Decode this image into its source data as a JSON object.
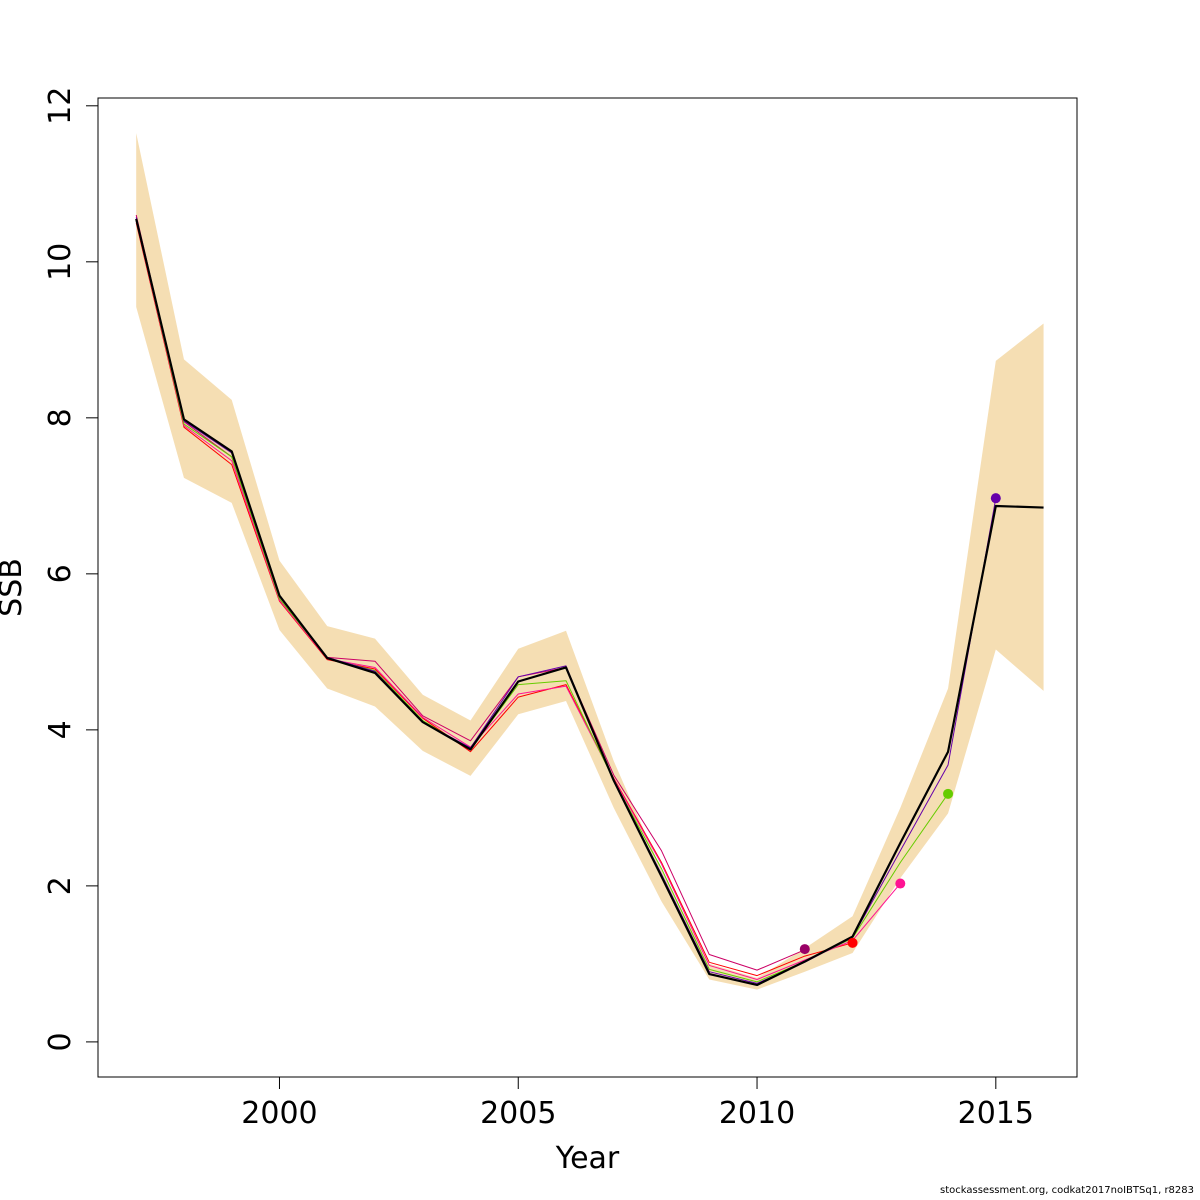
{
  "chart_data": {
    "type": "line",
    "xlabel": "Year",
    "ylabel": "SSB",
    "xlim": [
      1996.2,
      2016.7
    ],
    "ylim": [
      -0.45,
      12.1
    ],
    "x_ticks": [
      2000,
      2005,
      2010,
      2015
    ],
    "x_tick_labels": [
      "2000",
      "2005",
      "2010",
      "2015"
    ],
    "y_ticks": [
      0,
      2,
      4,
      6,
      8,
      10,
      12
    ],
    "y_tick_labels": [
      "0",
      "2",
      "4",
      "6",
      "8",
      "10",
      "12"
    ],
    "grid": false,
    "band": {
      "color": "#f5deb3",
      "x": [
        1997,
        1998,
        1999,
        2000,
        2001,
        2002,
        2003,
        2004,
        2005,
        2006,
        2007,
        2008,
        2009,
        2010,
        2011,
        2012,
        2013,
        2014,
        2015,
        2016
      ],
      "upper": [
        11.65,
        8.75,
        8.23,
        6.17,
        5.33,
        5.17,
        4.45,
        4.12,
        5.04,
        5.27,
        3.6,
        2.2,
        1.0,
        0.82,
        1.2,
        1.61,
        3.0,
        4.53,
        8.73,
        9.21
      ],
      "lower": [
        9.42,
        7.23,
        6.91,
        5.28,
        4.53,
        4.3,
        3.73,
        3.41,
        4.2,
        4.37,
        3.0,
        1.8,
        0.8,
        0.67,
        0.9,
        1.14,
        2.1,
        2.93,
        5.03,
        4.5
      ]
    },
    "series": [
      {
        "color": "#cc0066",
        "width": 1,
        "x": [
          1997,
          1998,
          1999,
          2000,
          2001,
          2002,
          2003,
          2004,
          2005,
          2006,
          2007,
          2008,
          2009,
          2010,
          2011
        ],
        "y": [
          10.6,
          7.95,
          7.5,
          5.68,
          4.93,
          4.88,
          4.18,
          3.86,
          4.68,
          4.8,
          3.42,
          2.45,
          1.12,
          0.92,
          1.18
        ]
      },
      {
        "color": "#ff0000",
        "width": 1,
        "x": [
          1997,
          1998,
          1999,
          2000,
          2001,
          2002,
          2003,
          2004,
          2005,
          2006,
          2007,
          2008,
          2009,
          2010,
          2011,
          2012
        ],
        "y": [
          10.5,
          7.88,
          7.4,
          5.65,
          4.9,
          4.78,
          4.15,
          3.72,
          4.42,
          4.58,
          3.38,
          2.3,
          1.02,
          0.85,
          1.1,
          1.27
        ]
      },
      {
        "color": "#ff1493",
        "width": 1,
        "x": [
          1997,
          1998,
          1999,
          2000,
          2001,
          2002,
          2003,
          2004,
          2005,
          2006,
          2007,
          2008,
          2009,
          2010,
          2011,
          2012,
          2013
        ],
        "y": [
          10.52,
          7.9,
          7.45,
          5.66,
          4.91,
          4.8,
          4.16,
          3.78,
          4.46,
          4.56,
          3.37,
          2.28,
          0.98,
          0.8,
          1.05,
          1.3,
          2.03
        ]
      },
      {
        "color": "#66cc00",
        "width": 1,
        "x": [
          1997,
          1998,
          1999,
          2000,
          2001,
          2002,
          2003,
          2004,
          2005,
          2006,
          2007,
          2008,
          2009,
          2010,
          2011,
          2012,
          2013,
          2014
        ],
        "y": [
          10.53,
          7.92,
          7.5,
          5.68,
          4.92,
          4.76,
          4.12,
          3.75,
          4.58,
          4.63,
          3.35,
          2.22,
          0.93,
          0.77,
          1.03,
          1.33,
          2.3,
          3.18
        ]
      },
      {
        "color": "#6600aa",
        "width": 1,
        "x": [
          1997,
          1998,
          1999,
          2000,
          2001,
          2002,
          2003,
          2004,
          2005,
          2006,
          2007,
          2008,
          2009,
          2010,
          2011,
          2012,
          2013,
          2014,
          2015
        ],
        "y": [
          10.57,
          7.96,
          7.55,
          5.71,
          4.93,
          4.75,
          4.1,
          3.77,
          4.68,
          4.82,
          3.35,
          2.15,
          0.9,
          0.75,
          1.02,
          1.34,
          2.45,
          3.55,
          6.97
        ]
      },
      {
        "color": "#000000",
        "width": 2.2,
        "x": [
          1997,
          1998,
          1999,
          2000,
          2001,
          2002,
          2003,
          2004,
          2005,
          2006,
          2007,
          2008,
          2009,
          2010,
          2011,
          2012,
          2013,
          2014,
          2015,
          2016
        ],
        "y": [
          10.55,
          7.98,
          7.57,
          5.72,
          4.92,
          4.73,
          4.1,
          3.75,
          4.62,
          4.8,
          3.35,
          2.12,
          0.87,
          0.73,
          1.03,
          1.35,
          2.55,
          3.72,
          6.87,
          6.85
        ]
      }
    ],
    "points": [
      {
        "x": 2011,
        "y": 1.19,
        "color": "#990066"
      },
      {
        "x": 2012,
        "y": 1.27,
        "color": "#ff0000"
      },
      {
        "x": 2013,
        "y": 2.03,
        "color": "#ff1493"
      },
      {
        "x": 2014,
        "y": 3.18,
        "color": "#66cc00"
      },
      {
        "x": 2015,
        "y": 6.97,
        "color": "#6600aa"
      }
    ]
  },
  "footnote": "stockassessment.org, codkat2017noIBTSq1, r8283"
}
